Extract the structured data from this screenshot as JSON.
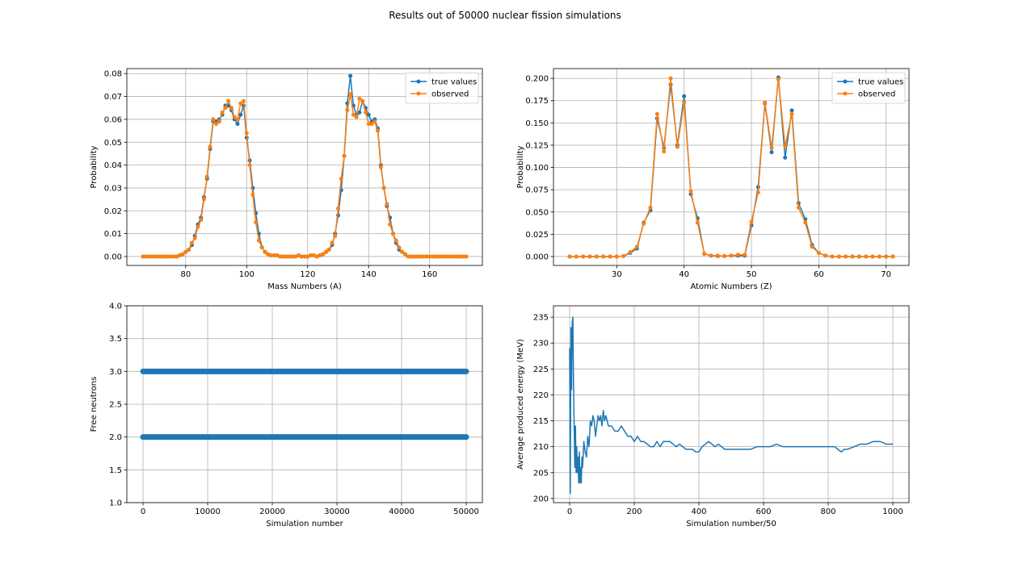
{
  "title": "Results out of 50000 nuclear fission simulations",
  "chart_data": [
    {
      "type": "line",
      "xlabel": "Mass Numbers (A)",
      "ylabel": "Probability",
      "marker": "o",
      "grid": true,
      "legend": "upper right",
      "xlim": [
        60.7,
        177.3
      ],
      "ylim": [
        -0.0039,
        0.0822
      ],
      "xticks": [
        80,
        100,
        120,
        140,
        160
      ],
      "yticks": [
        {
          "value": 0,
          "label": "0.00"
        },
        {
          "value": 0.01,
          "label": "0.01"
        },
        {
          "value": 0.02,
          "label": "0.02"
        },
        {
          "value": 0.03,
          "label": "0.03"
        },
        {
          "value": 0.04,
          "label": "0.04"
        },
        {
          "value": 0.05,
          "label": "0.05"
        },
        {
          "value": 0.06,
          "label": "0.06"
        },
        {
          "value": 0.07,
          "label": "0.07"
        },
        {
          "value": 0.08,
          "label": "0.08"
        }
      ],
      "x": [
        66,
        67,
        68,
        69,
        70,
        71,
        72,
        73,
        74,
        75,
        76,
        77,
        78,
        79,
        80,
        81,
        82,
        83,
        84,
        85,
        86,
        87,
        88,
        89,
        90,
        91,
        92,
        93,
        94,
        95,
        96,
        97,
        98,
        99,
        100,
        101,
        102,
        103,
        104,
        105,
        106,
        107,
        108,
        109,
        110,
        111,
        112,
        113,
        114,
        115,
        116,
        117,
        118,
        119,
        120,
        121,
        122,
        123,
        124,
        125,
        126,
        127,
        128,
        129,
        130,
        131,
        132,
        133,
        134,
        135,
        136,
        137,
        138,
        139,
        140,
        141,
        142,
        143,
        144,
        145,
        146,
        147,
        148,
        149,
        150,
        151,
        152,
        153,
        154,
        155,
        156,
        157,
        158,
        159,
        160,
        161,
        162,
        163,
        164,
        165,
        166,
        167,
        168,
        169,
        170,
        171,
        172
      ],
      "series": [
        {
          "name": "true values",
          "color": "#1f77b4",
          "values": [
            0,
            0,
            0,
            0,
            0,
            0,
            0,
            0,
            0,
            0,
            0,
            0,
            0.0005,
            0.001,
            0.002,
            0.003,
            0.005,
            0.009,
            0.014,
            0.017,
            0.026,
            0.034,
            0.047,
            0.059,
            0.059,
            0.06,
            0.062,
            0.066,
            0.066,
            0.064,
            0.06,
            0.058,
            0.062,
            0.066,
            0.052,
            0.042,
            0.03,
            0.019,
            0.01,
            0.004,
            0.002,
            0.001,
            0.0005,
            0.0005,
            0.0005,
            0,
            0,
            0,
            0,
            0,
            0,
            0.0005,
            0,
            0,
            0,
            0.0005,
            0.0005,
            0,
            0.0005,
            0.001,
            0.002,
            0.003,
            0.005,
            0.01,
            0.018,
            0.029,
            0.044,
            0.067,
            0.079,
            0.066,
            0.062,
            0.063,
            0.068,
            0.065,
            0.062,
            0.059,
            0.06,
            0.056,
            0.04,
            0.03,
            0.022,
            0.017,
            0.01,
            0.006,
            0.003,
            0.002,
            0.001,
            0,
            0,
            0,
            0,
            0,
            0,
            0,
            0,
            0,
            0,
            0,
            0,
            0,
            0,
            0,
            0,
            0,
            0,
            0,
            0
          ]
        },
        {
          "name": "observed",
          "color": "#ff7f0e",
          "values": [
            0,
            0,
            0,
            0,
            0,
            0,
            0,
            0,
            0,
            0,
            0,
            0,
            0.0005,
            0.001,
            0.002,
            0.003,
            0.006,
            0.008,
            0.013,
            0.016,
            0.025,
            0.035,
            0.048,
            0.06,
            0.058,
            0.059,
            0.063,
            0.065,
            0.068,
            0.065,
            0.061,
            0.06,
            0.067,
            0.068,
            0.054,
            0.04,
            0.027,
            0.015,
            0.007,
            0.004,
            0.002,
            0.001,
            0.0005,
            0.0005,
            0.0005,
            0,
            0,
            0,
            0,
            0,
            0,
            0.0005,
            0,
            0,
            0,
            0.0005,
            0.0005,
            0,
            0.0005,
            0.001,
            0.002,
            0.003,
            0.006,
            0.009,
            0.021,
            0.034,
            0.044,
            0.064,
            0.071,
            0.062,
            0.061,
            0.069,
            0.068,
            0.063,
            0.058,
            0.058,
            0.059,
            0.055,
            0.039,
            0.03,
            0.023,
            0.014,
            0.01,
            0.007,
            0.004,
            0.002,
            0.001,
            0,
            0,
            0,
            0,
            0,
            0,
            0,
            0,
            0,
            0,
            0,
            0,
            0,
            0,
            0,
            0,
            0,
            0,
            0,
            0
          ]
        }
      ]
    },
    {
      "type": "line",
      "xlabel": "Atomic Numbers (Z)",
      "ylabel": "Probability",
      "marker": "o",
      "grid": true,
      "legend": "upper right",
      "xlim": [
        20.6,
        73.4
      ],
      "ylim": [
        -0.01,
        0.211
      ],
      "xticks": [
        30,
        40,
        50,
        60,
        70
      ],
      "yticks": [
        {
          "value": 0,
          "label": "0.000"
        },
        {
          "value": 0.025,
          "label": "0.025"
        },
        {
          "value": 0.05,
          "label": "0.050"
        },
        {
          "value": 0.075,
          "label": "0.075"
        },
        {
          "value": 0.1,
          "label": "0.100"
        },
        {
          "value": 0.125,
          "label": "0.125"
        },
        {
          "value": 0.15,
          "label": "0.150"
        },
        {
          "value": 0.175,
          "label": "0.175"
        },
        {
          "value": 0.2,
          "label": "0.200"
        }
      ],
      "x": [
        23,
        24,
        25,
        26,
        27,
        28,
        29,
        30,
        31,
        32,
        33,
        34,
        35,
        36,
        37,
        38,
        39,
        40,
        41,
        42,
        43,
        44,
        45,
        46,
        47,
        48,
        49,
        50,
        51,
        52,
        53,
        54,
        55,
        56,
        57,
        58,
        59,
        60,
        61,
        62,
        63,
        64,
        65,
        66,
        67,
        68,
        69,
        70,
        71
      ],
      "series": [
        {
          "name": "true values",
          "color": "#1f77b4",
          "values": [
            0,
            0,
            0,
            0,
            0,
            0,
            0,
            0,
            0.0005,
            0.004,
            0.009,
            0.038,
            0.052,
            0.155,
            0.122,
            0.193,
            0.125,
            0.18,
            0.07,
            0.043,
            0.003,
            0.001,
            0.0005,
            0.0005,
            0.001,
            0.001,
            0.001,
            0.035,
            0.078,
            0.172,
            0.117,
            0.201,
            0.111,
            0.164,
            0.06,
            0.042,
            0.013,
            0.004,
            0.001,
            0,
            0,
            0,
            0,
            0,
            0,
            0,
            0,
            0,
            0
          ]
        },
        {
          "name": "observed",
          "color": "#ff7f0e",
          "values": [
            0,
            0,
            0,
            0,
            0,
            0,
            0,
            0,
            0.0005,
            0.005,
            0.011,
            0.037,
            0.055,
            0.16,
            0.118,
            0.2,
            0.123,
            0.173,
            0.073,
            0.038,
            0.003,
            0.001,
            0.001,
            0.0005,
            0.001,
            0.002,
            0.002,
            0.039,
            0.072,
            0.173,
            0.122,
            0.199,
            0.124,
            0.16,
            0.055,
            0.038,
            0.011,
            0.004,
            0.001,
            0,
            0,
            0,
            0,
            0,
            0,
            0,
            0,
            0,
            0
          ]
        }
      ]
    },
    {
      "type": "line",
      "xlabel": "Simulation number",
      "ylabel": "Free neutrons",
      "grid": true,
      "linewidth": 7,
      "xlim": [
        -2500,
        52500
      ],
      "ylim": [
        1,
        4
      ],
      "xticks": [
        0,
        10000,
        20000,
        30000,
        40000,
        50000
      ],
      "yticks": [
        {
          "value": 1,
          "label": "1.0"
        },
        {
          "value": 1.5,
          "label": "1.5"
        },
        {
          "value": 2,
          "label": "2.0"
        },
        {
          "value": 2.5,
          "label": "2.5"
        },
        {
          "value": 3,
          "label": "3.0"
        },
        {
          "value": 3.5,
          "label": "3.5"
        },
        {
          "value": 4,
          "label": "4.0"
        }
      ],
      "x": [
        0,
        50000
      ],
      "series": [
        {
          "color": "#1f77b4",
          "values": [
            3,
            3
          ]
        },
        {
          "color": "#1f77b4",
          "values": [
            2,
            2
          ]
        }
      ]
    },
    {
      "type": "line",
      "xlabel": "Simulation number/50",
      "ylabel": "Average produced energy (MeV)",
      "grid": true,
      "linewidth": 1.5,
      "xlim": [
        -50,
        1050
      ],
      "ylim": [
        199.2,
        237.2
      ],
      "xticks": [
        0,
        200,
        400,
        600,
        800,
        1000
      ],
      "yticks": [
        200,
        205,
        210,
        215,
        220,
        225,
        230,
        235
      ],
      "x": [
        0,
        2,
        4,
        6,
        8,
        10,
        12,
        14,
        16,
        18,
        20,
        22,
        24,
        26,
        28,
        30,
        32,
        34,
        36,
        38,
        40,
        44,
        48,
        52,
        56,
        60,
        64,
        68,
        72,
        76,
        80,
        84,
        88,
        92,
        96,
        100,
        104,
        108,
        112,
        116,
        120,
        130,
        140,
        150,
        160,
        170,
        180,
        190,
        200,
        210,
        220,
        230,
        240,
        250,
        260,
        270,
        280,
        290,
        300,
        310,
        320,
        330,
        340,
        350,
        360,
        370,
        380,
        390,
        400,
        410,
        420,
        430,
        440,
        450,
        460,
        470,
        480,
        500,
        520,
        540,
        560,
        580,
        600,
        620,
        640,
        660,
        680,
        700,
        720,
        740,
        760,
        780,
        800,
        820,
        830,
        840,
        850,
        860,
        880,
        900,
        920,
        940,
        960,
        980,
        1000
      ],
      "series": [
        {
          "color": "#1f77b4",
          "values": [
            229,
            201,
            233,
            221,
            234,
            235,
            222,
            214,
            206,
            214,
            205,
            210,
            205,
            208,
            203,
            209,
            203,
            206,
            203,
            208,
            206,
            211,
            209,
            208,
            212,
            210,
            215,
            214,
            216,
            215,
            212,
            214,
            216,
            215,
            216,
            214,
            217,
            215,
            216,
            215,
            214,
            214,
            213,
            213,
            214,
            213,
            212,
            212,
            211,
            212,
            211,
            211,
            210.5,
            210,
            210,
            211,
            210,
            211,
            211,
            211,
            210.5,
            210,
            210.5,
            210,
            209.5,
            209.5,
            209.5,
            209,
            209,
            210,
            210.5,
            211,
            210.5,
            210,
            210.5,
            210,
            209.5,
            209.5,
            209.5,
            209.5,
            209.5,
            210,
            210,
            210,
            210.5,
            210,
            210,
            210,
            210,
            210,
            210,
            210,
            210,
            210,
            209.5,
            209,
            209.5,
            209.5,
            210,
            210.5,
            210.5,
            211,
            211,
            210.5,
            210.5
          ]
        }
      ]
    }
  ]
}
